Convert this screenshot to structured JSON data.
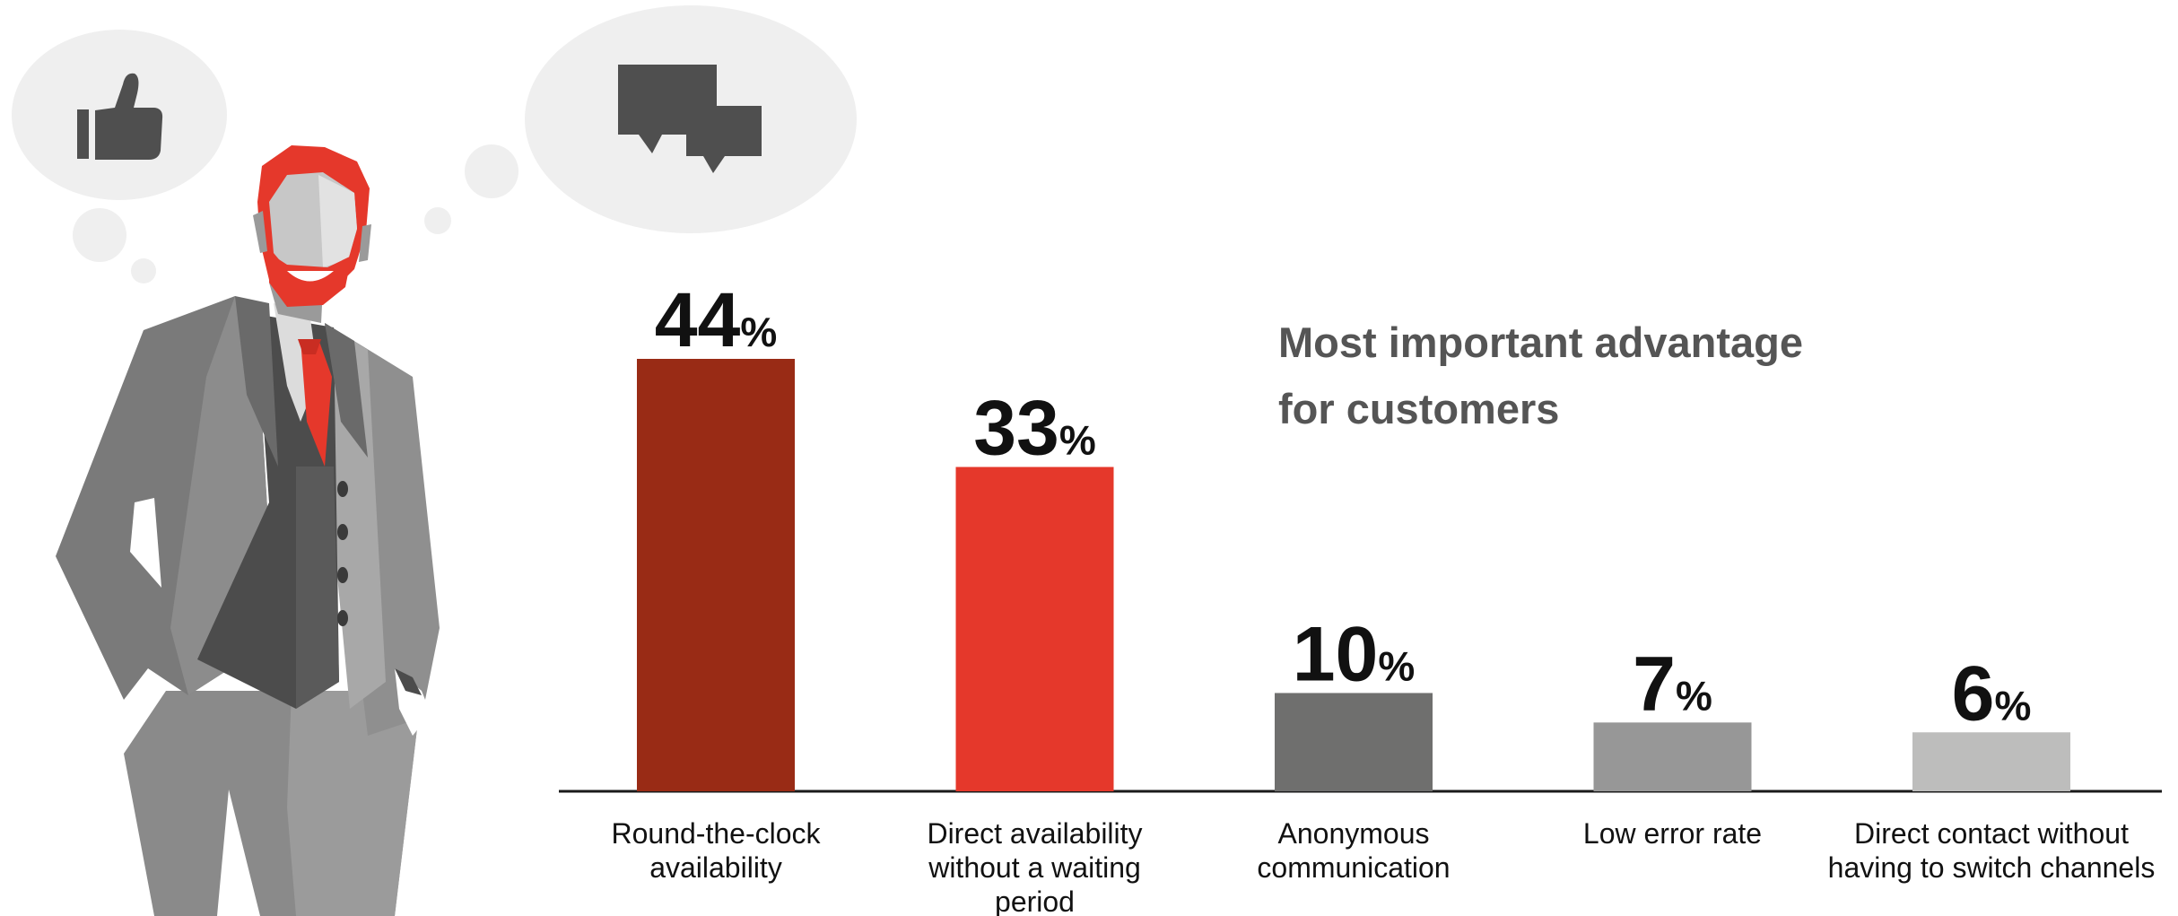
{
  "chart_data": {
    "type": "bar",
    "title_lines": [
      "Most important advantage",
      "for customers"
    ],
    "unit": "%",
    "categories": [
      [
        "Round-the-clock",
        "availability"
      ],
      [
        "Direct availability",
        "without a waiting",
        "period"
      ],
      [
        "Anonymous",
        "communication"
      ],
      [
        "Low error rate"
      ],
      [
        "Direct contact without",
        "having to switch channels"
      ]
    ],
    "values": [
      44,
      33,
      10,
      7,
      6
    ],
    "value_labels": [
      "44",
      "33",
      "10",
      "7",
      "6"
    ],
    "colors": [
      "#992b15",
      "#e5382b",
      "#6f6f6e",
      "#979797",
      "#bdbdbc"
    ],
    "ylim": [
      0,
      44
    ]
  },
  "illustration": {
    "icons": [
      "thumbs-up-icon",
      "speech-bubbles-icon"
    ],
    "figure": "businessman-with-red-beard"
  }
}
